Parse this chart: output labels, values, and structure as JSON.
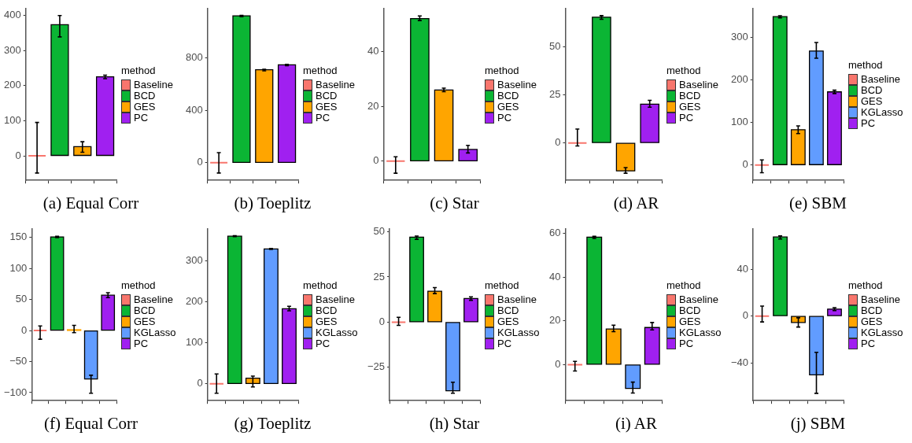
{
  "chart_data": [
    {
      "type": "bar",
      "title": "(a) Equal Corr",
      "legend_title": "method",
      "legend": "right",
      "grid": false,
      "tick_labels": "y",
      "categories": [
        null,
        null,
        null,
        null
      ],
      "ylim": [
        -70,
        420
      ],
      "yticks": [
        0,
        100,
        200,
        300,
        400
      ],
      "series": [
        {
          "name": "Baseline",
          "color": "#f8766d",
          "values": [
            0,
            null,
            null,
            null
          ],
          "errors": [
            [
              -49,
              95
            ],
            null,
            null,
            null
          ]
        },
        {
          "name": "BCD",
          "color": "#0bb534",
          "values": [
            null,
            374,
            null,
            null
          ],
          "errors": [
            null,
            [
              339,
              400
            ],
            null,
            null
          ]
        },
        {
          "name": "GES",
          "color": "#ffa500",
          "values": [
            null,
            null,
            26,
            null
          ],
          "errors": [
            null,
            null,
            [
              10,
              40
            ],
            null
          ]
        },
        {
          "name": "PC",
          "color": "#a020f0",
          "values": [
            null,
            null,
            null,
            225
          ],
          "errors": [
            null,
            null,
            null,
            [
              220,
              230
            ]
          ]
        }
      ]
    },
    {
      "type": "bar",
      "title": "(b) Toeplitz",
      "legend_title": "method",
      "legend": "right",
      "grid": false,
      "tick_labels": "y",
      "categories": [
        null,
        null,
        null,
        null
      ],
      "ylim": [
        -135,
        1180
      ],
      "yticks": [
        0,
        400,
        800
      ],
      "series": [
        {
          "name": "Baseline",
          "color": "#f8766d",
          "values": [
            0,
            null,
            null,
            null
          ],
          "errors": [
            [
              -79,
              77
            ],
            null,
            null,
            null
          ]
        },
        {
          "name": "BCD",
          "color": "#0bb534",
          "values": [
            null,
            1124,
            null,
            null
          ],
          "errors": [
            null,
            [
              1118,
              1128
            ],
            null,
            null
          ]
        },
        {
          "name": "GES",
          "color": "#ffa500",
          "values": [
            null,
            null,
            711,
            null
          ],
          "errors": [
            null,
            null,
            [
              703,
              715
            ],
            null
          ]
        },
        {
          "name": "PC",
          "color": "#a020f0",
          "values": [
            null,
            null,
            null,
            749
          ],
          "errors": [
            null,
            null,
            null,
            [
              743,
              752
            ]
          ]
        }
      ]
    },
    {
      "type": "bar",
      "title": "(c) Star",
      "legend_title": "method",
      "legend": "right",
      "grid": false,
      "tick_labels": "y",
      "categories": [
        null,
        null,
        null,
        null
      ],
      "ylim": [
        -7,
        55.8
      ],
      "yticks": [
        0,
        20,
        40
      ],
      "series": [
        {
          "name": "Baseline",
          "color": "#f8766d",
          "values": [
            0,
            null,
            null,
            null
          ],
          "errors": [
            [
              -4.4,
              1.6
            ],
            null,
            null,
            null
          ]
        },
        {
          "name": "BCD",
          "color": "#0bb534",
          "values": [
            null,
            52.1,
            null,
            null
          ],
          "errors": [
            null,
            [
              51.4,
              53.1
            ],
            null,
            null
          ]
        },
        {
          "name": "GES",
          "color": "#ffa500",
          "values": [
            null,
            null,
            26,
            null
          ],
          "errors": [
            null,
            null,
            [
              25.4,
              26.7
            ],
            null
          ]
        },
        {
          "name": "PC",
          "color": "#a020f0",
          "values": [
            null,
            null,
            null,
            4.3
          ],
          "errors": [
            null,
            null,
            null,
            [
              3,
              5.8
            ]
          ]
        }
      ]
    },
    {
      "type": "bar",
      "title": "(d) AR",
      "legend_title": "method",
      "legend": "right",
      "grid": false,
      "tick_labels": "y",
      "categories": [
        null,
        null,
        null,
        null
      ],
      "ylim": [
        -19.4,
        69.7
      ],
      "yticks": [
        0,
        25,
        50
      ],
      "series": [
        {
          "name": "Baseline",
          "color": "#f8766d",
          "values": [
            0,
            null,
            null,
            null
          ],
          "errors": [
            [
              -1.6,
              7.2
            ],
            null,
            null,
            null
          ]
        },
        {
          "name": "BCD",
          "color": "#0bb534",
          "values": [
            null,
            65.2,
            null,
            null
          ],
          "errors": [
            null,
            [
              64.1,
              66
            ],
            null,
            null
          ]
        },
        {
          "name": "GES",
          "color": "#ffa500",
          "values": [
            null,
            null,
            -14.5,
            null
          ],
          "errors": [
            null,
            null,
            [
              -15.7,
              -12.8
            ],
            null
          ]
        },
        {
          "name": "PC",
          "color": "#a020f0",
          "values": [
            null,
            null,
            null,
            20.1
          ],
          "errors": [
            null,
            null,
            null,
            [
              18.5,
              22.1
            ]
          ]
        }
      ]
    },
    {
      "type": "bar",
      "title": "(e) SBM",
      "legend_title": "method",
      "legend": "right",
      "grid": false,
      "tick_labels": "y",
      "categories": [
        null,
        null,
        null,
        null,
        null
      ],
      "ylim": [
        -36,
        368
      ],
      "yticks": [
        0,
        100,
        200,
        300
      ],
      "series": [
        {
          "name": "Baseline",
          "color": "#f8766d",
          "values": [
            0,
            null,
            null,
            null,
            null
          ],
          "errors": [
            [
              -18,
              12
            ],
            null,
            null,
            null,
            null
          ]
        },
        {
          "name": "BCD",
          "color": "#0bb534",
          "values": [
            null,
            349,
            null,
            null,
            null
          ],
          "errors": [
            null,
            [
              346,
              351
            ],
            null,
            null,
            null
          ]
        },
        {
          "name": "GES",
          "color": "#ffa500",
          "values": [
            null,
            null,
            83,
            null,
            null
          ],
          "errors": [
            null,
            null,
            [
              74,
              92
            ],
            null,
            null
          ]
        },
        {
          "name": "KGLasso",
          "color": "#619cff",
          "values": [
            null,
            null,
            null,
            268,
            null
          ],
          "errors": [
            null,
            null,
            null,
            [
              251,
              288
            ],
            null
          ]
        },
        {
          "name": "PC",
          "color": "#a020f0",
          "values": [
            null,
            null,
            null,
            null,
            172
          ],
          "errors": [
            null,
            null,
            null,
            null,
            [
              168,
              176
            ]
          ]
        }
      ]
    },
    {
      "type": "bar",
      "title": "(f) Equal Corr",
      "legend_title": "method",
      "legend": "right",
      "grid": false,
      "tick_labels": "y",
      "categories": [
        null,
        null,
        null,
        null,
        null
      ],
      "ylim": [
        -113,
        164
      ],
      "yticks": [
        {
          "value": -100,
          "label": "−100"
        },
        {
          "value": -50,
          "label": "−50"
        },
        0,
        50,
        100,
        150
      ],
      "series": [
        {
          "name": "Baseline",
          "color": "#f8766d",
          "values": [
            0,
            null,
            null,
            null,
            null
          ],
          "errors": [
            [
              -14,
              7.4
            ],
            null,
            null,
            null,
            null
          ]
        },
        {
          "name": "BCD",
          "color": "#0bb534",
          "values": [
            null,
            151,
            null,
            null,
            null
          ],
          "errors": [
            null,
            [
              150,
              152
            ],
            null,
            null,
            null
          ]
        },
        {
          "name": "GES",
          "color": "#ffa500",
          "values": [
            null,
            null,
            1,
            null,
            null
          ],
          "errors": [
            null,
            null,
            [
              -3.3,
              8.3
            ],
            null,
            null
          ]
        },
        {
          "name": "KGLasso",
          "color": "#619cff",
          "values": [
            null,
            null,
            null,
            -78,
            null
          ],
          "errors": [
            null,
            null,
            null,
            [
              -101,
              -72
            ],
            null
          ]
        },
        {
          "name": "PC",
          "color": "#a020f0",
          "values": [
            null,
            null,
            null,
            null,
            57
          ],
          "errors": [
            null,
            null,
            null,
            null,
            [
              53,
              61
            ]
          ]
        }
      ]
    },
    {
      "type": "bar",
      "title": "(g) Toeplitz",
      "legend_title": "method",
      "legend": "right",
      "grid": false,
      "tick_labels": "y",
      "categories": [
        null,
        null,
        null,
        null,
        null
      ],
      "ylim": [
        -41,
        378
      ],
      "yticks": [
        0,
        100,
        200,
        300
      ],
      "series": [
        {
          "name": "Baseline",
          "color": "#f8766d",
          "values": [
            0,
            null,
            null,
            null,
            null
          ],
          "errors": [
            [
              -23,
              24
            ],
            null,
            null,
            null,
            null
          ]
        },
        {
          "name": "BCD",
          "color": "#0bb534",
          "values": [
            null,
            360,
            null,
            null,
            null
          ],
          "errors": [
            null,
            [
              359,
              361
            ],
            null,
            null,
            null
          ]
        },
        {
          "name": "GES",
          "color": "#ffa500",
          "values": [
            null,
            null,
            14,
            null,
            null
          ],
          "errors": [
            null,
            null,
            [
              -7.5,
              19
            ],
            null,
            null
          ]
        },
        {
          "name": "KGLasso",
          "color": "#619cff",
          "values": [
            null,
            null,
            null,
            329,
            null
          ],
          "errors": [
            null,
            null,
            null,
            [
              328,
              330
            ],
            null
          ]
        },
        {
          "name": "PC",
          "color": "#a020f0",
          "values": [
            null,
            null,
            null,
            null,
            183
          ],
          "errors": [
            null,
            null,
            null,
            null,
            [
              178,
              189
            ]
          ]
        }
      ]
    },
    {
      "type": "bar",
      "title": "(h) Star",
      "legend_title": "method",
      "legend": "right",
      "grid": false,
      "tick_labels": "y",
      "categories": [
        null,
        null,
        null,
        null,
        null
      ],
      "ylim": [
        -43.4,
        51.6
      ],
      "yticks": [
        {
          "value": -25,
          "label": "−25"
        },
        0,
        25,
        50
      ],
      "series": [
        {
          "name": "Baseline",
          "color": "#f8766d",
          "values": [
            0,
            null,
            null,
            null,
            null
          ],
          "errors": [
            [
              -1.8,
              2.7
            ],
            null,
            null,
            null,
            null
          ]
        },
        {
          "name": "BCD",
          "color": "#0bb534",
          "values": [
            null,
            47,
            null,
            null,
            null
          ],
          "errors": [
            null,
            [
              45.8,
              47.6
            ],
            null,
            null,
            null
          ]
        },
        {
          "name": "GES",
          "color": "#ffa500",
          "values": [
            null,
            null,
            17.1,
            null,
            null
          ],
          "errors": [
            null,
            null,
            [
              15.8,
              19.1
            ],
            null,
            null
          ]
        },
        {
          "name": "KGLasso",
          "color": "#619cff",
          "values": [
            null,
            null,
            null,
            -37.9,
            null
          ],
          "errors": [
            null,
            null,
            null,
            [
              -39.3,
              -33.2
            ],
            null
          ]
        },
        {
          "name": "PC",
          "color": "#a020f0",
          "values": [
            null,
            null,
            null,
            null,
            13.1
          ],
          "errors": [
            null,
            null,
            null,
            null,
            [
              12.1,
              14
            ]
          ]
        }
      ]
    },
    {
      "type": "bar",
      "title": "(i) AR",
      "legend_title": "method",
      "legend": "right",
      "grid": false,
      "tick_labels": "y",
      "categories": [
        null,
        null,
        null,
        null,
        null
      ],
      "ylim": [
        -16.5,
        62.2
      ],
      "yticks": [
        0,
        20,
        40,
        60
      ],
      "series": [
        {
          "name": "Baseline",
          "color": "#f8766d",
          "values": [
            0,
            null,
            null,
            null,
            null
          ],
          "errors": [
            [
              -2.9,
              1.5
            ],
            null,
            null,
            null,
            null
          ]
        },
        {
          "name": "BCD",
          "color": "#0bb534",
          "values": [
            null,
            58.4,
            null,
            null,
            null
          ],
          "errors": [
            null,
            [
              57.8,
              58.8
            ],
            null,
            null,
            null
          ]
        },
        {
          "name": "GES",
          "color": "#ffa500",
          "values": [
            null,
            null,
            16.3,
            null,
            null
          ],
          "errors": [
            null,
            null,
            [
              15.1,
              18.1
            ],
            null,
            null
          ]
        },
        {
          "name": "KGLasso",
          "color": "#619cff",
          "values": [
            null,
            null,
            null,
            -10.9,
            null
          ],
          "errors": [
            null,
            null,
            null,
            [
              -13,
              -8
            ],
            null
          ]
        },
        {
          "name": "PC",
          "color": "#a020f0",
          "values": [
            null,
            null,
            null,
            null,
            17
          ],
          "errors": [
            null,
            null,
            null,
            null,
            [
              15.9,
              19.3
            ]
          ]
        }
      ]
    },
    {
      "type": "bar",
      "title": "(j) SBM",
      "legend_title": "method",
      "legend": "right",
      "grid": false,
      "tick_labels": "y",
      "categories": [
        null,
        null,
        null,
        null,
        null
      ],
      "ylim": [
        -72.3,
        74.5
      ],
      "yticks": [
        {
          "value": -40,
          "label": "−40"
        },
        0,
        40
      ],
      "series": [
        {
          "name": "Baseline",
          "color": "#f8766d",
          "values": [
            0,
            null,
            null,
            null,
            null
          ],
          "errors": [
            [
              -5,
              8.5
            ],
            null,
            null,
            null,
            null
          ]
        },
        {
          "name": "BCD",
          "color": "#0bb534",
          "values": [
            null,
            67.5,
            null,
            null,
            null
          ],
          "errors": [
            null,
            [
              65.8,
              68.4
            ],
            null,
            null,
            null
          ]
        },
        {
          "name": "GES",
          "color": "#ffa500",
          "values": [
            null,
            null,
            -5.5,
            null,
            null
          ],
          "errors": [
            null,
            null,
            [
              -9.4,
              -1.5
            ],
            null,
            null
          ]
        },
        {
          "name": "KGLasso",
          "color": "#619cff",
          "values": [
            null,
            null,
            null,
            -50.3,
            null
          ],
          "errors": [
            null,
            null,
            null,
            [
              -66,
              -31
            ],
            null
          ]
        },
        {
          "name": "PC",
          "color": "#a020f0",
          "values": [
            null,
            null,
            null,
            null,
            5.9
          ],
          "errors": [
            null,
            null,
            null,
            null,
            [
              4.6,
              7.2
            ]
          ]
        }
      ]
    }
  ]
}
